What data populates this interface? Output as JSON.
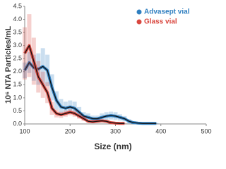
{
  "chart_data": {
    "type": "line",
    "x_label": "Size (nm)",
    "y_label": "10⁶ NTA Particles/mL",
    "x": [
      100,
      110,
      120,
      130,
      140,
      150,
      160,
      170,
      180,
      190,
      200,
      210,
      220,
      230,
      240,
      250,
      260,
      270,
      280,
      290,
      300,
      310,
      320,
      330,
      340,
      350,
      360,
      370,
      380,
      390,
      400
    ],
    "series": [
      {
        "name": "Advasept vial",
        "color": "#2f7fc0",
        "values": [
          2.05,
          2.35,
          2.15,
          2.1,
          2.2,
          2.05,
          1.4,
          0.9,
          0.65,
          0.6,
          0.65,
          0.6,
          0.45,
          0.3,
          0.25,
          0.2,
          0.2,
          0.25,
          0.3,
          0.32,
          0.3,
          0.25,
          0.2,
          0.1,
          0.05,
          0.03,
          0.02,
          0.02,
          0.02,
          0.02,
          null
        ],
        "errors": [
          0.3,
          0.4,
          0.5,
          0.6,
          0.7,
          0.6,
          0.5,
          0.35,
          0.3,
          0.25,
          0.25,
          0.25,
          0.2,
          0.15,
          0.15,
          0.12,
          0.12,
          0.15,
          0.15,
          0.15,
          0.15,
          0.12,
          0.1,
          0.08,
          0.05,
          0.03,
          0.02,
          0.02,
          0.02,
          0.02,
          null
        ]
      },
      {
        "name": "Glass vial",
        "color": "#d9473f",
        "values": [
          2.7,
          3.0,
          2.4,
          1.8,
          1.5,
          1.2,
          0.6,
          0.4,
          0.35,
          0.4,
          0.45,
          0.4,
          0.3,
          0.2,
          0.1,
          0.08,
          0.1,
          0.12,
          0.1,
          0.05,
          0.03,
          0.02,
          0.02,
          null,
          null,
          null,
          null,
          null,
          null,
          null,
          null
        ],
        "errors": [
          1.0,
          1.2,
          0.9,
          0.6,
          0.5,
          0.4,
          0.25,
          0.15,
          0.12,
          0.12,
          0.12,
          0.12,
          0.1,
          0.08,
          0.05,
          0.05,
          0.05,
          0.05,
          0.05,
          0.03,
          0.02,
          0.02,
          0.02,
          null,
          null,
          null,
          null,
          null,
          null,
          null,
          null
        ]
      }
    ],
    "xlim": [
      100,
      500
    ],
    "xticks": [
      100,
      200,
      300,
      400,
      500
    ],
    "ylim": [
      0,
      4.5
    ],
    "yticks": [
      {
        "value": 0,
        "label": "0.0"
      },
      0.5,
      {
        "value": 1,
        "label": "1.0"
      },
      1.5,
      {
        "value": 2,
        "label": "2.0"
      },
      2.5,
      {
        "value": 3,
        "label": "3.0"
      },
      3.5,
      {
        "value": 4,
        "label": "4.0"
      },
      4.5
    ],
    "legend": "upper right"
  }
}
